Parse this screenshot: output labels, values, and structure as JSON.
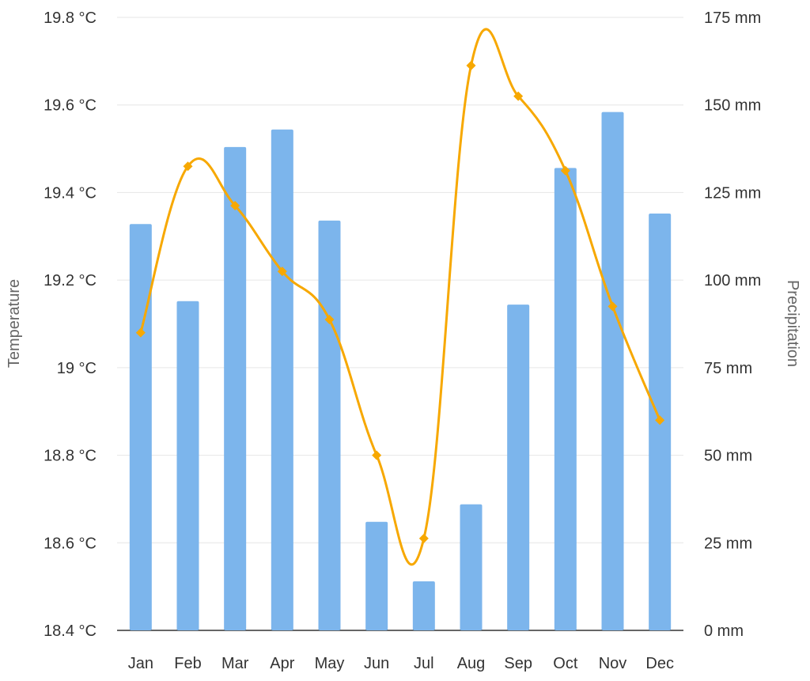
{
  "chart_data": {
    "type": "bar+line",
    "categories": [
      "Jan",
      "Feb",
      "Mar",
      "Apr",
      "May",
      "Jun",
      "Jul",
      "Aug",
      "Sep",
      "Oct",
      "Nov",
      "Dec"
    ],
    "series": [
      {
        "name": "Precipitation",
        "type": "bar",
        "axis": "right",
        "color": "#7cb5ec",
        "values": [
          116,
          94,
          138,
          143,
          117,
          31,
          14,
          36,
          93,
          132,
          148,
          119
        ]
      },
      {
        "name": "Temperature",
        "type": "line",
        "axis": "left",
        "color": "#f7a800",
        "values": [
          19.08,
          19.46,
          19.37,
          19.22,
          19.11,
          18.8,
          18.61,
          19.69,
          19.62,
          19.45,
          19.14,
          18.88
        ]
      }
    ],
    "left_axis": {
      "label": "Temperature",
      "range": [
        18.4,
        19.8
      ],
      "ticks": [
        "19.8 °C",
        "19.6 °C",
        "19.4 °C",
        "19.2 °C",
        "19 °C",
        "18.8 °C",
        "18.6 °C",
        "18.4 °C"
      ]
    },
    "right_axis": {
      "label": "Precipitation",
      "range": [
        0,
        175
      ],
      "ticks": [
        "175 mm",
        "150 mm",
        "125 mm",
        "100 mm",
        "75 mm",
        "50 mm",
        "25 mm",
        "0 mm"
      ]
    },
    "grid": true,
    "legend": "none"
  }
}
